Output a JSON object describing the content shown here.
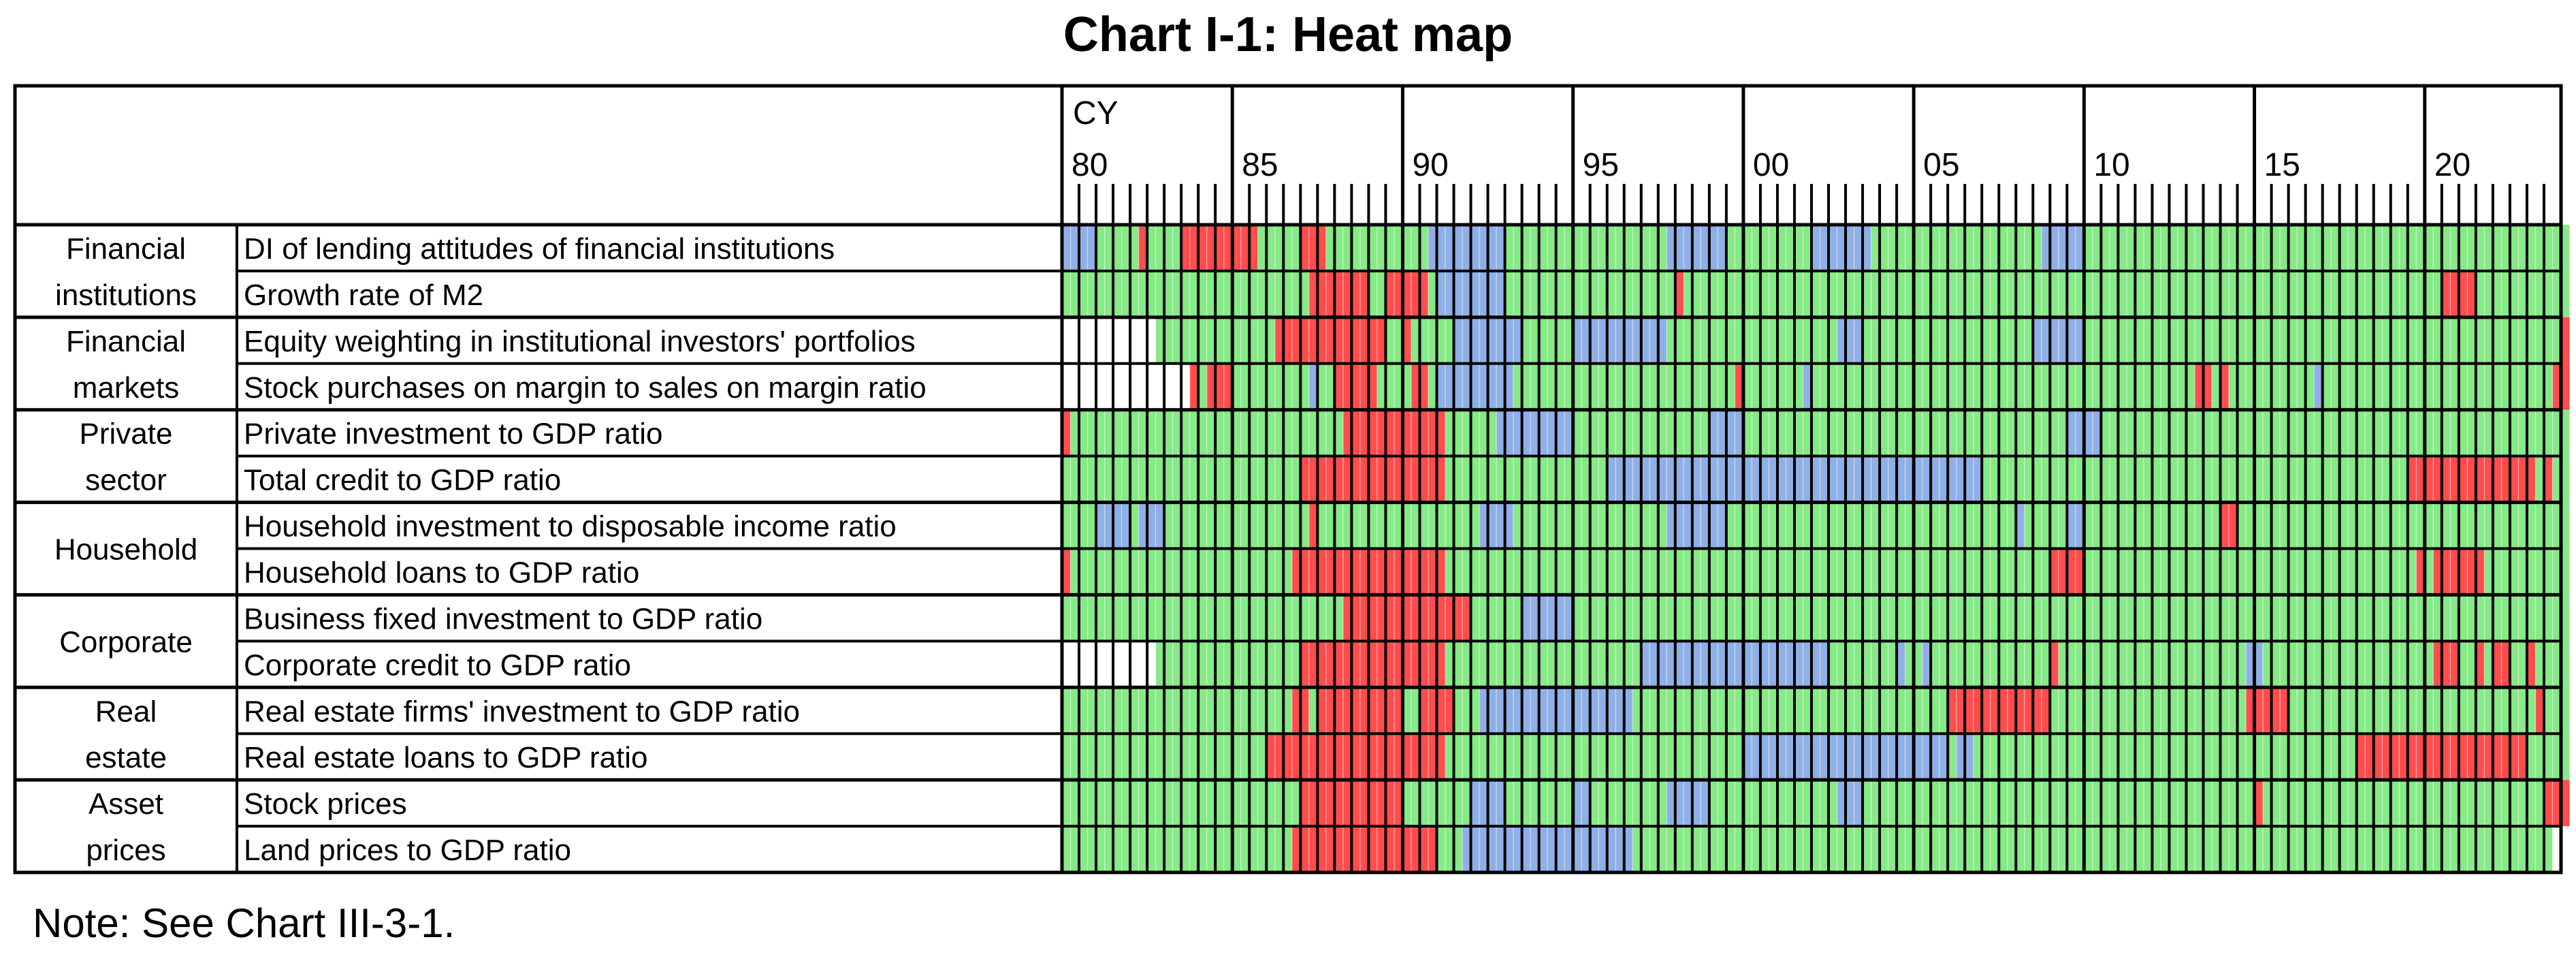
{
  "title": "Chart I-1: Heat map",
  "note": "Note: See Chart III-3-1.",
  "chart_data": {
    "type": "heatmap",
    "title": "Chart I-1: Heat map",
    "x_axis": {
      "unit_label": "CY",
      "start_year": 1980,
      "end_year": 2024,
      "periods_per_year": 4,
      "tick_labels": [
        "80",
        "85",
        "90",
        "95",
        "00",
        "05",
        "10",
        "15",
        "20"
      ],
      "tick_years": [
        1980,
        1985,
        1990,
        1995,
        2000,
        2005,
        2010,
        2015,
        2020
      ]
    },
    "colors": {
      "overheating": "#ff4d4d",
      "neutral": "#86ea86",
      "overcooling": "#8fb0e6",
      "no_data": "#ffffff"
    },
    "categories": [
      {
        "name": "Financial institutions",
        "rows": [
          0,
          1
        ]
      },
      {
        "name": "Financial markets",
        "rows": [
          2,
          3
        ]
      },
      {
        "name": "Private sector",
        "rows": [
          4,
          5
        ]
      },
      {
        "name": "Household",
        "rows": [
          6,
          7
        ]
      },
      {
        "name": "Corporate",
        "rows": [
          8,
          9
        ]
      },
      {
        "name": "Real estate",
        "rows": [
          10,
          11
        ]
      },
      {
        "name": "Asset prices",
        "rows": [
          12,
          13
        ]
      }
    ],
    "indicators": [
      {
        "name": "DI of lending attitudes of financial institutions",
        "segments": [
          [
            "blue",
            1980.0,
            1981.0
          ],
          [
            "red",
            1982.25,
            1982.5
          ],
          [
            "red",
            1983.5,
            1985.75
          ],
          [
            "red",
            1987.0,
            1987.75
          ],
          [
            "blue",
            1990.75,
            1993.0
          ],
          [
            "blue",
            1997.75,
            1999.5
          ],
          [
            "blue",
            2002.0,
            2003.75
          ],
          [
            "blue",
            2008.75,
            2010.0
          ]
        ],
        "end": 2024.25
      },
      {
        "name": "Growth rate of M2",
        "segments": [
          [
            "red",
            1987.25,
            1989.0
          ],
          [
            "red",
            1989.5,
            1990.75
          ],
          [
            "blue",
            1991.0,
            1993.0
          ],
          [
            "red",
            1998.0,
            1998.25
          ],
          [
            "red",
            2020.5,
            2021.5
          ]
        ],
        "end": 2024.25
      },
      {
        "name": "Equity weighting in institutional investors' portfolios",
        "segments": [
          [
            "white",
            1980.0,
            1982.75
          ],
          [
            "red",
            1986.25,
            1989.5
          ],
          [
            "red",
            1990.0,
            1990.25
          ],
          [
            "blue",
            1991.5,
            1993.5
          ],
          [
            "blue",
            1995.0,
            1997.75
          ],
          [
            "blue",
            2002.75,
            2003.5
          ],
          [
            "blue",
            2008.5,
            2010.0
          ],
          [
            "red",
            2024.0,
            2024.25
          ]
        ],
        "end": 2024.25
      },
      {
        "name": "Stock purchases on margin to sales on margin ratio",
        "segments": [
          [
            "white",
            1980.0,
            1983.75
          ],
          [
            "red",
            1983.75,
            1984.0
          ],
          [
            "red",
            1984.25,
            1985.0
          ],
          [
            "blue",
            1987.25,
            1987.5
          ],
          [
            "red",
            1988.0,
            1989.25
          ],
          [
            "red",
            1990.25,
            1990.75
          ],
          [
            "blue",
            1991.0,
            1993.25
          ],
          [
            "red",
            1999.75,
            2000.0
          ],
          [
            "blue",
            2001.75,
            2002.0
          ],
          [
            "red",
            2013.25,
            2013.75
          ],
          [
            "red",
            2014.0,
            2014.25
          ],
          [
            "blue",
            2016.75,
            2017.0
          ],
          [
            "red",
            2023.75,
            2024.25
          ]
        ],
        "end": 2024.25
      },
      {
        "name": "Private investment to GDP ratio",
        "segments": [
          [
            "red",
            1980.0,
            1980.25
          ],
          [
            "red",
            1988.25,
            1991.25
          ],
          [
            "blue",
            1992.75,
            1995.0
          ],
          [
            "blue",
            1999.0,
            2000.0
          ],
          [
            "blue",
            2009.5,
            2010.5
          ]
        ],
        "end": 2024.25
      },
      {
        "name": "Total credit to GDP ratio",
        "segments": [
          [
            "red",
            1987.0,
            1991.25
          ],
          [
            "blue",
            1996.0,
            2007.0
          ],
          [
            "red",
            2019.5,
            2023.25
          ],
          [
            "red",
            2023.5,
            2023.75
          ]
        ],
        "end": 2024.25
      },
      {
        "name": "Household investment to disposable income ratio",
        "segments": [
          [
            "blue",
            1981.0,
            1982.0
          ],
          [
            "blue",
            1982.25,
            1983.0
          ],
          [
            "red",
            1987.25,
            1987.5
          ],
          [
            "blue",
            1992.25,
            1993.25
          ],
          [
            "blue",
            1997.75,
            1999.5
          ],
          [
            "blue",
            2008.0,
            2008.25
          ],
          [
            "blue",
            2009.5,
            2010.0
          ],
          [
            "red",
            2014.0,
            2014.5
          ]
        ],
        "end": 2024.25
      },
      {
        "name": "Household loans to GDP ratio",
        "segments": [
          [
            "red",
            1980.0,
            1980.25
          ],
          [
            "red",
            1986.75,
            1991.25
          ],
          [
            "red",
            2009.0,
            2010.0
          ],
          [
            "red",
            2019.75,
            2020.0
          ],
          [
            "red",
            2020.25,
            2021.75
          ]
        ],
        "end": 2024.25
      },
      {
        "name": "Business fixed investment to GDP ratio",
        "segments": [
          [
            "red",
            1988.25,
            1992.0
          ],
          [
            "blue",
            1993.5,
            1995.0
          ]
        ],
        "end": 2024.25
      },
      {
        "name": "Corporate credit to GDP ratio",
        "segments": [
          [
            "white",
            1980.0,
            1982.75
          ],
          [
            "red",
            1987.0,
            1991.25
          ],
          [
            "blue",
            1997.0,
            2002.5
          ],
          [
            "blue",
            2004.5,
            2004.75
          ],
          [
            "blue",
            2005.25,
            2005.5
          ],
          [
            "red",
            2009.0,
            2009.25
          ],
          [
            "blue",
            2014.75,
            2015.25
          ],
          [
            "red",
            2020.25,
            2021.0
          ],
          [
            "red",
            2021.5,
            2021.75
          ],
          [
            "red",
            2022.0,
            2022.5
          ],
          [
            "red",
            2023.0,
            2023.25
          ]
        ],
        "end": 2024.25
      },
      {
        "name": "Real estate firms' investment to GDP ratio",
        "segments": [
          [
            "red",
            1986.75,
            1987.25
          ],
          [
            "red",
            1987.5,
            1990.0
          ],
          [
            "red",
            1990.5,
            1991.5
          ],
          [
            "blue",
            1992.25,
            1996.75
          ],
          [
            "red",
            2006.0,
            2009.0
          ],
          [
            "red",
            2014.75,
            2016.0
          ],
          [
            "red",
            2023.25,
            2023.5
          ]
        ],
        "end": 2024.25
      },
      {
        "name": "Real estate loans to GDP ratio",
        "segments": [
          [
            "red",
            1986.0,
            1991.25
          ],
          [
            "blue",
            2000.0,
            2006.0
          ],
          [
            "blue",
            2006.25,
            2006.75
          ],
          [
            "red",
            2018.0,
            2023.0
          ]
        ],
        "end": 2024.25
      },
      {
        "name": "Stock prices",
        "segments": [
          [
            "red",
            1987.0,
            1990.0
          ],
          [
            "blue",
            1992.0,
            1993.0
          ],
          [
            "blue",
            1995.0,
            1995.5
          ],
          [
            "blue",
            1997.75,
            1999.0
          ],
          [
            "blue",
            2002.75,
            2003.5
          ],
          [
            "red",
            2015.0,
            2015.25
          ],
          [
            "red",
            2023.5,
            2024.25
          ]
        ],
        "end": 2024.25
      },
      {
        "name": "Land prices to GDP ratio",
        "segments": [
          [
            "red",
            1986.75,
            1991.0
          ],
          [
            "blue",
            1991.75,
            1996.75
          ]
        ],
        "end": 2023.75
      }
    ]
  }
}
